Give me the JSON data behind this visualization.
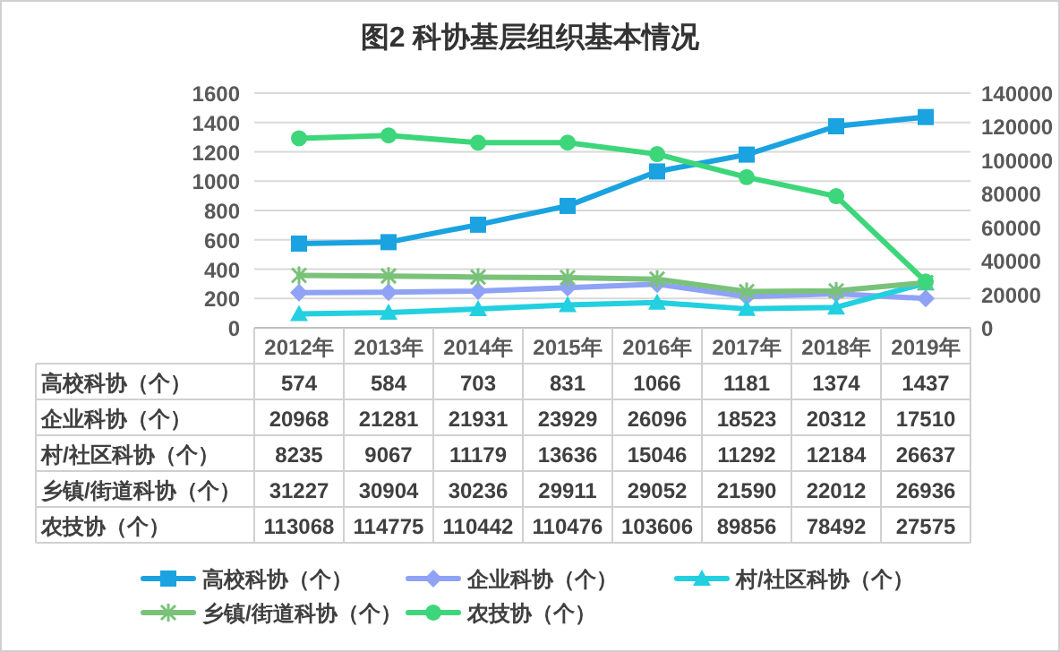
{
  "chart_data": {
    "type": "line",
    "title": "图2  科协基层组织基本情况",
    "categories": [
      "2012年",
      "2013年",
      "2014年",
      "2015年",
      "2016年",
      "2017年",
      "2018年",
      "2019年"
    ],
    "series": [
      {
        "name": "高校科协（个）",
        "color": "#1aa3e0",
        "marker": "square",
        "values": [
          574,
          584,
          703,
          831,
          1066,
          1181,
          1374,
          1437
        ]
      },
      {
        "name": "企业科协（个）",
        "color": "#8fa2f5",
        "marker": "diamond",
        "axis": "y2",
        "values": [
          20968,
          21281,
          21931,
          23929,
          26096,
          18523,
          20312,
          17510
        ]
      },
      {
        "name": "村/社区科协（个）",
        "color": "#22d0e0",
        "marker": "triangle",
        "axis": "y2",
        "values": [
          8235,
          9067,
          11179,
          13636,
          15046,
          11292,
          12184,
          26637
        ]
      },
      {
        "name": "乡镇/街道科协（个）",
        "color": "#7ac27a",
        "marker": "cross",
        "axis": "y2",
        "values": [
          31227,
          30904,
          30236,
          29911,
          29052,
          21590,
          22012,
          26936
        ]
      },
      {
        "name": "农技协（个）",
        "color": "#3dd67a",
        "marker": "circle",
        "axis": "y2",
        "values": [
          113068,
          114775,
          110442,
          110476,
          103606,
          89856,
          78492,
          27575
        ]
      }
    ],
    "ylim": [
      0,
      1600
    ],
    "yticks": [
      0,
      200,
      400,
      600,
      800,
      1000,
      1200,
      1400,
      1600
    ],
    "y2lim": [
      0,
      140000
    ],
    "y2ticks": [
      0,
      20000,
      40000,
      60000,
      80000,
      100000,
      120000,
      140000
    ],
    "grid": "y",
    "legend": "bottom",
    "data_labels": true
  }
}
